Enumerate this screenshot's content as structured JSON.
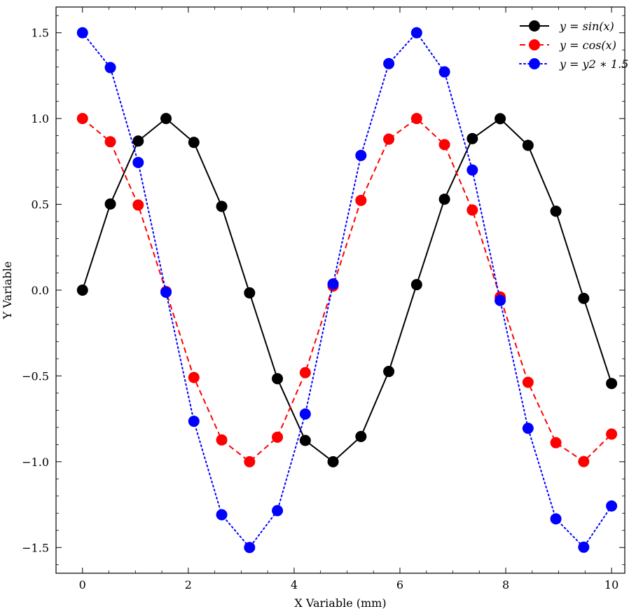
{
  "chart_data": {
    "type": "line",
    "title": "",
    "xlabel": "X Variable (mm)",
    "ylabel": "Y Variable",
    "xlim": [
      -0.5,
      10.25
    ],
    "ylim": [
      -1.65,
      1.65
    ],
    "x_ticks": [
      0,
      2,
      4,
      6,
      8,
      10
    ],
    "x_tick_labels": [
      "0",
      "2",
      "4",
      "6",
      "8",
      "10"
    ],
    "y_ticks": [
      -1.5,
      -1.0,
      -0.5,
      0.0,
      0.5,
      1.0,
      1.5
    ],
    "y_tick_labels": [
      "−1.5",
      "−1.0",
      "−0.5",
      "0.0",
      "0.5",
      "1.0",
      "1.5"
    ],
    "grid": false,
    "legend_position": "top-right",
    "x": [
      0,
      0.5263,
      1.0526,
      1.5789,
      2.1053,
      2.6316,
      3.1579,
      3.6842,
      4.2105,
      4.7368,
      5.2632,
      5.7895,
      6.3158,
      6.8421,
      7.3684,
      7.8947,
      8.4211,
      8.9474,
      9.4737,
      10.0
    ],
    "series": [
      {
        "name": "y = sin(x)",
        "color": "#000000",
        "line_style": "solid",
        "marker": "circle",
        "values": [
          0.0,
          0.502,
          0.869,
          1.0,
          0.861,
          0.488,
          -0.016,
          -0.516,
          -0.876,
          -1.0,
          -0.853,
          -0.474,
          0.032,
          0.53,
          0.883,
          0.999,
          0.844,
          0.46,
          -0.048,
          -0.544
        ]
      },
      {
        "name": "y = cos(x)",
        "color": "#ff0000",
        "line_style": "dashed",
        "marker": "circle",
        "values": [
          1.0,
          0.865,
          0.496,
          -0.008,
          -0.509,
          -0.873,
          -1.0,
          -0.857,
          -0.481,
          0.024,
          0.523,
          0.88,
          1.0,
          0.848,
          0.467,
          -0.04,
          -0.537,
          -0.889,
          -0.999,
          -0.839
        ]
      },
      {
        "name": "y = y2 * 1.5",
        "color": "#0000ff",
        "line_style": "dotted",
        "marker": "circle",
        "values": [
          1.5,
          1.297,
          0.744,
          -0.012,
          -0.764,
          -1.309,
          -1.5,
          -1.285,
          -0.722,
          0.036,
          0.785,
          1.32,
          1.5,
          1.272,
          0.7,
          -0.06,
          -0.805,
          -1.333,
          -1.498,
          -1.258
        ]
      }
    ],
    "legend": {
      "entries": [
        {
          "pre": "y",
          "eq": " = ",
          "post": "sin(x)"
        },
        {
          "pre": "y",
          "eq": " = ",
          "post": "cos(x)"
        },
        {
          "pre": "y",
          "eq": " = ",
          "post": "y2 ∗ 1.5"
        }
      ]
    }
  }
}
